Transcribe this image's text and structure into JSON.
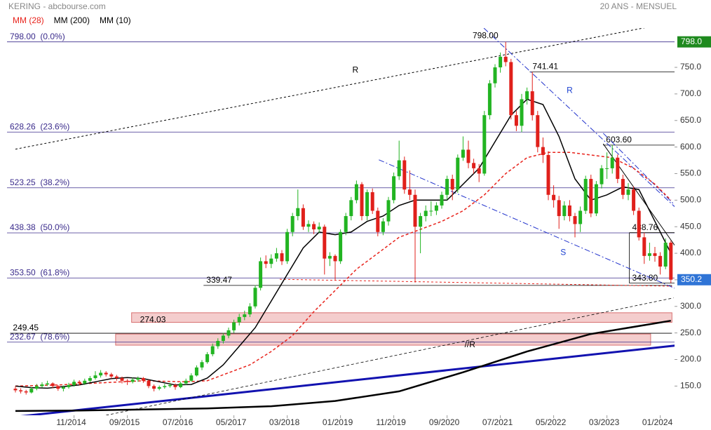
{
  "chart_data": {
    "type": "candlestick",
    "title": "KERING - abcbourse.com",
    "subtitle": "20 ANS - MENSUEL",
    "x": [
      "12/2013",
      "01/2014",
      "02/2014",
      "03/2014",
      "04/2014",
      "05/2014",
      "06/2014",
      "07/2014",
      "08/2014",
      "09/2014",
      "10/2014",
      "11/2014",
      "12/2014",
      "01/2015",
      "02/2015",
      "03/2015",
      "04/2015",
      "05/2015",
      "06/2015",
      "07/2015",
      "08/2015",
      "09/2015",
      "10/2015",
      "11/2015",
      "12/2015",
      "01/2016",
      "02/2016",
      "03/2016",
      "04/2016",
      "05/2016",
      "06/2016",
      "07/2016",
      "08/2016",
      "09/2016",
      "10/2016",
      "11/2016",
      "12/2016",
      "01/2017",
      "02/2017",
      "03/2017",
      "04/2017",
      "05/2017",
      "06/2017",
      "07/2017",
      "08/2017",
      "09/2017",
      "10/2017",
      "11/2017",
      "12/2017",
      "01/2018",
      "02/2018",
      "03/2018",
      "04/2018",
      "05/2018",
      "06/2018",
      "07/2018",
      "08/2018",
      "09/2018",
      "10/2018",
      "11/2018",
      "12/2018",
      "01/2019",
      "02/2019",
      "03/2019",
      "04/2019",
      "05/2019",
      "06/2019",
      "07/2019",
      "08/2019",
      "09/2019",
      "10/2019",
      "11/2019",
      "12/2019",
      "01/2020",
      "02/2020",
      "03/2020",
      "04/2020",
      "05/2020",
      "06/2020",
      "07/2020",
      "08/2020",
      "09/2020",
      "10/2020",
      "11/2020",
      "12/2020",
      "01/2021",
      "02/2021",
      "03/2021",
      "04/2021",
      "05/2021",
      "06/2021",
      "07/2021",
      "08/2021",
      "09/2021",
      "10/2021",
      "11/2021",
      "12/2021",
      "01/2022",
      "02/2022",
      "03/2022",
      "04/2022",
      "05/2022",
      "06/2022",
      "07/2022",
      "08/2022",
      "09/2022",
      "10/2022",
      "11/2022",
      "12/2022",
      "01/2023",
      "02/2023",
      "03/2023",
      "04/2023",
      "05/2023",
      "06/2023",
      "07/2023",
      "08/2023",
      "09/2023",
      "10/2023",
      "11/2023",
      "12/2023",
      "01/2024",
      "02/2024",
      "03/2024"
    ],
    "xticks": [
      11,
      21,
      31,
      41,
      51,
      61,
      71,
      81,
      91,
      101,
      111,
      121
    ],
    "candles": [
      [
        145,
        150,
        138,
        142
      ],
      [
        142,
        146,
        136,
        140
      ],
      [
        140,
        143,
        134,
        138
      ],
      [
        138,
        148,
        136,
        145
      ],
      [
        145,
        154,
        142,
        150
      ],
      [
        150,
        157,
        147,
        153
      ],
      [
        153,
        160,
        150,
        155
      ],
      [
        155,
        157,
        146,
        150
      ],
      [
        150,
        152,
        141,
        145
      ],
      [
        145,
        151,
        140,
        148
      ],
      [
        148,
        156,
        145,
        152
      ],
      [
        152,
        162,
        149,
        158
      ],
      [
        158,
        161,
        151,
        155
      ],
      [
        155,
        164,
        152,
        160
      ],
      [
        160,
        169,
        157,
        165
      ],
      [
        165,
        178,
        162,
        170
      ],
      [
        170,
        180,
        166,
        175
      ],
      [
        175,
        178,
        168,
        172
      ],
      [
        172,
        175,
        164,
        168
      ],
      [
        168,
        171,
        160,
        165
      ],
      [
        165,
        168,
        155,
        160
      ],
      [
        160,
        163,
        152,
        158
      ],
      [
        158,
        166,
        155,
        162
      ],
      [
        162,
        168,
        158,
        165
      ],
      [
        165,
        167,
        156,
        160
      ],
      [
        160,
        162,
        146,
        150
      ],
      [
        150,
        153,
        140,
        145
      ],
      [
        145,
        151,
        142,
        148
      ],
      [
        148,
        154,
        145,
        150
      ],
      [
        150,
        156,
        147,
        152
      ],
      [
        152,
        155,
        143,
        148
      ],
      [
        148,
        158,
        146,
        155
      ],
      [
        155,
        164,
        152,
        160
      ],
      [
        160,
        174,
        158,
        170
      ],
      [
        170,
        189,
        168,
        185
      ],
      [
        185,
        199,
        180,
        195
      ],
      [
        195,
        214,
        192,
        210
      ],
      [
        210,
        230,
        206,
        225
      ],
      [
        225,
        240,
        220,
        235
      ],
      [
        235,
        250,
        230,
        245
      ],
      [
        245,
        260,
        240,
        255
      ],
      [
        255,
        275,
        250,
        270
      ],
      [
        270,
        286,
        264,
        280
      ],
      [
        280,
        292,
        274,
        285
      ],
      [
        285,
        306,
        280,
        300
      ],
      [
        300,
        340,
        296,
        335
      ],
      [
        335,
        392,
        330,
        385
      ],
      [
        385,
        396,
        372,
        380
      ],
      [
        380,
        398,
        372,
        390
      ],
      [
        390,
        410,
        384,
        400
      ],
      [
        400,
        406,
        378,
        385
      ],
      [
        385,
        446,
        380,
        440
      ],
      [
        440,
        476,
        432,
        470
      ],
      [
        470,
        520,
        462,
        485
      ],
      [
        485,
        492,
        444,
        450
      ],
      [
        450,
        462,
        440,
        455
      ],
      [
        455,
        460,
        436,
        445
      ],
      [
        445,
        458,
        438,
        450
      ],
      [
        450,
        454,
        360,
        390
      ],
      [
        390,
        402,
        376,
        395
      ],
      [
        395,
        398,
        350,
        385
      ],
      [
        385,
        445,
        380,
        440
      ],
      [
        440,
        476,
        434,
        470
      ],
      [
        470,
        506,
        462,
        500
      ],
      [
        500,
        537,
        494,
        530
      ],
      [
        530,
        534,
        462,
        470
      ],
      [
        470,
        520,
        462,
        515
      ],
      [
        515,
        522,
        474,
        480
      ],
      [
        480,
        486,
        432,
        440
      ],
      [
        440,
        466,
        434,
        460
      ],
      [
        460,
        506,
        452,
        500
      ],
      [
        500,
        552,
        494,
        545
      ],
      [
        545,
        612,
        538,
        575
      ],
      [
        575,
        582,
        512,
        520
      ],
      [
        520,
        556,
        500,
        510
      ],
      [
        510,
        520,
        345,
        450
      ],
      [
        450,
        476,
        400,
        470
      ],
      [
        470,
        490,
        460,
        480
      ],
      [
        480,
        498,
        470,
        480
      ],
      [
        480,
        496,
        472,
        490
      ],
      [
        490,
        516,
        484,
        510
      ],
      [
        510,
        546,
        500,
        540
      ],
      [
        540,
        548,
        500,
        520
      ],
      [
        520,
        586,
        514,
        580
      ],
      [
        580,
        620,
        574,
        595
      ],
      [
        595,
        612,
        560,
        570
      ],
      [
        570,
        578,
        550,
        560
      ],
      [
        560,
        568,
        534,
        550
      ],
      [
        550,
        668,
        546,
        660
      ],
      [
        660,
        726,
        652,
        720
      ],
      [
        720,
        756,
        712,
        750
      ],
      [
        750,
        778,
        740,
        770
      ],
      [
        770,
        798,
        752,
        760
      ],
      [
        760,
        766,
        652,
        660
      ],
      [
        660,
        668,
        630,
        640
      ],
      [
        640,
        700,
        628,
        690
      ],
      [
        690,
        712,
        680,
        705
      ],
      [
        705,
        741.41,
        650,
        660
      ],
      [
        660,
        668,
        590,
        600
      ],
      [
        600,
        618,
        570,
        585
      ],
      [
        585,
        592,
        500,
        510
      ],
      [
        510,
        528,
        486,
        500
      ],
      [
        500,
        508,
        446,
        470
      ],
      [
        470,
        498,
        462,
        490
      ],
      [
        490,
        500,
        460,
        470
      ],
      [
        470,
        476,
        430,
        455
      ],
      [
        455,
        488,
        440,
        480
      ],
      [
        480,
        546,
        474,
        540
      ],
      [
        540,
        548,
        468,
        475
      ],
      [
        475,
        536,
        470,
        530
      ],
      [
        530,
        566,
        522,
        560
      ],
      [
        560,
        590,
        540,
        560
      ],
      [
        560,
        603.6,
        550,
        580
      ],
      [
        580,
        586,
        532,
        540
      ],
      [
        540,
        548,
        502,
        510
      ],
      [
        510,
        532,
        500,
        520
      ],
      [
        520,
        526,
        472,
        480
      ],
      [
        480,
        486,
        424,
        430
      ],
      [
        430,
        438.76,
        380,
        395
      ],
      [
        395,
        420,
        386,
        400
      ],
      [
        400,
        412,
        384,
        395
      ],
      [
        395,
        402,
        360,
        375
      ],
      [
        375,
        428,
        370,
        420
      ],
      [
        420,
        424,
        343.8,
        350.2
      ]
    ],
    "up_color": "#22b422",
    "down_color": "#e0201b",
    "series": [
      {
        "name": "MM (28)",
        "color": "#e8231c",
        "dash": "4,3",
        "x": [
          0,
          8,
          16,
          24,
          32,
          36,
          40,
          44,
          48,
          52,
          56,
          60,
          64,
          68,
          72,
          76,
          80,
          84,
          88,
          92,
          96,
          100,
          104,
          108,
          112,
          116,
          120,
          123
        ],
        "values": [
          150,
          152,
          156,
          160,
          158,
          160,
          175,
          190,
          215,
          245,
          290,
          330,
          370,
          400,
          430,
          445,
          460,
          480,
          510,
          550,
          580,
          590,
          590,
          585,
          580,
          560,
          530,
          500
        ]
      },
      {
        "name": "MM (200)",
        "color": "#000000",
        "width": 2.5,
        "x": [
          0,
          12,
          24,
          36,
          48,
          60,
          72,
          84,
          96,
          108,
          120,
          123
        ],
        "values": [
          103,
          104,
          106,
          108,
          112,
          122,
          140,
          176,
          215,
          248,
          268,
          273
        ]
      },
      {
        "name": "MM (10)",
        "color": "#000000",
        "width": 1.5,
        "x": [
          0,
          3,
          6,
          9,
          12,
          15,
          18,
          21,
          24,
          27,
          30,
          33,
          36,
          39,
          42,
          45,
          48,
          51,
          54,
          57,
          60,
          63,
          66,
          69,
          72,
          75,
          78,
          81,
          84,
          87,
          90,
          93,
          96,
          99,
          102,
          105,
          108,
          111,
          114,
          117,
          120,
          123
        ],
        "values": [
          150,
          147,
          146,
          149,
          152,
          158,
          164,
          166,
          164,
          158,
          152,
          153,
          165,
          190,
          225,
          260,
          310,
          360,
          410,
          440,
          435,
          440,
          460,
          470,
          490,
          500,
          500,
          500,
          530,
          560,
          610,
          660,
          690,
          680,
          620,
          540,
          500,
          510,
          525,
          520,
          460,
          400
        ]
      }
    ],
    "ylim": [
      95,
      824
    ],
    "yticks": [
      {
        "value": 150,
        "label": "150.0"
      },
      {
        "value": 200,
        "label": "200.0"
      },
      {
        "value": 250,
        "label": "250.0"
      },
      {
        "value": 300,
        "label": "300.0"
      },
      {
        "value": 350,
        "label": "350.0"
      },
      {
        "value": 400,
        "label": "400.0"
      },
      {
        "value": 450,
        "label": "450.0"
      },
      {
        "value": 500,
        "label": "500.0"
      },
      {
        "value": 550,
        "label": "550.0"
      },
      {
        "value": 600,
        "label": "600.0"
      },
      {
        "value": 650,
        "label": "650.0"
      },
      {
        "value": 700,
        "label": "700.0"
      },
      {
        "value": 750,
        "label": "750.0"
      }
    ],
    "price_badges": [
      {
        "value": 798,
        "label": "798.0",
        "color": "#1e8a1e"
      },
      {
        "value": 350.2,
        "label": "350.2",
        "color": "#2f74d6"
      }
    ],
    "fibonacci": [
      {
        "value": 798,
        "label": "798.00  (0.0%)"
      },
      {
        "value": 628.26,
        "label": "628.26  (23.6%)"
      },
      {
        "value": 523.25,
        "label": "523.25  (38.2%)"
      },
      {
        "value": 438.38,
        "label": "438.38  (50.0%)"
      },
      {
        "value": 353.5,
        "label": "353.50  (61.8%)"
      },
      {
        "value": 232.67,
        "label": "232.67  (78.6%)"
      }
    ],
    "fib_color": "#3b2c8c",
    "levels": [
      {
        "value": 741.41,
        "label": "741.41",
        "from": 96.5,
        "to": 124.2
      },
      {
        "value": 603.6,
        "label": "603.60",
        "from": 110.3,
        "to": 124.2
      },
      {
        "value": 438.76,
        "label": "438.76",
        "from": 115.2,
        "to": 124.2
      },
      {
        "value": 343.8,
        "label": "343.80",
        "from": 115.2,
        "to": 124.2
      },
      {
        "value": 339.47,
        "label": "339.47",
        "from": 35.3,
        "to": 123.2
      },
      {
        "value": 249.45,
        "label": "249.45",
        "from": -1,
        "to": 123.2
      }
    ],
    "zones": [
      {
        "value": 274.03,
        "label": "274.03",
        "low": 270,
        "high": 288,
        "from": 21.8,
        "to": 123.2
      },
      {
        "low": 227,
        "high": 248,
        "from": 18.8,
        "to": 119.2
      }
    ],
    "trendlines": [
      {
        "x1": 0,
        "y1": 596,
        "x2": 124,
        "y2": 836,
        "color": "#000000",
        "dash": "3,3",
        "width": 1
      },
      {
        "x1": 0,
        "y1": 92,
        "x2": 124.5,
        "y2": 227,
        "color": "#1212b0",
        "width": 3
      },
      {
        "x1": 17,
        "y1": 95,
        "x2": 123.5,
        "y2": 316,
        "color": "#000000",
        "dash": "4,3",
        "width": 0.8
      },
      {
        "x1": 87.9,
        "y1": 824,
        "x2": 124.2,
        "y2": 483,
        "color": "#2233cc",
        "dash": "8,3,2,3",
        "width": 1
      },
      {
        "x1": 110.3,
        "y1": 626,
        "x2": 124.2,
        "y2": 486,
        "color": "#2233cc",
        "dash": "8,3,2,3",
        "width": 1
      },
      {
        "x1": 110.3,
        "y1": 606,
        "x2": 124.2,
        "y2": 408,
        "color": "#000000",
        "width": 1
      },
      {
        "x1": 68.2,
        "y1": 576,
        "x2": 124.2,
        "y2": 332,
        "color": "#2233cc",
        "dash": "8,3,2,3",
        "width": 1
      },
      {
        "x1": 49.6,
        "y1": 351,
        "x2": 123.2,
        "y2": 338,
        "color": "#e8231c",
        "dash": "3,3",
        "width": 1
      }
    ],
    "annotations": [
      {
        "label": "798.00",
        "x": 88.2,
        "y": 809,
        "color": "#000000"
      },
      {
        "label": "R",
        "x": 63.8,
        "y": 744,
        "color": "#000000"
      },
      {
        "label": "R",
        "x": 104,
        "y": 706,
        "color": "#1a3fd0"
      },
      {
        "label": "S",
        "x": 102.8,
        "y": 401,
        "color": "#1a3fd0"
      },
      {
        "label": "//R",
        "x": 85.3,
        "y": 227,
        "color": "#000000"
      }
    ]
  }
}
